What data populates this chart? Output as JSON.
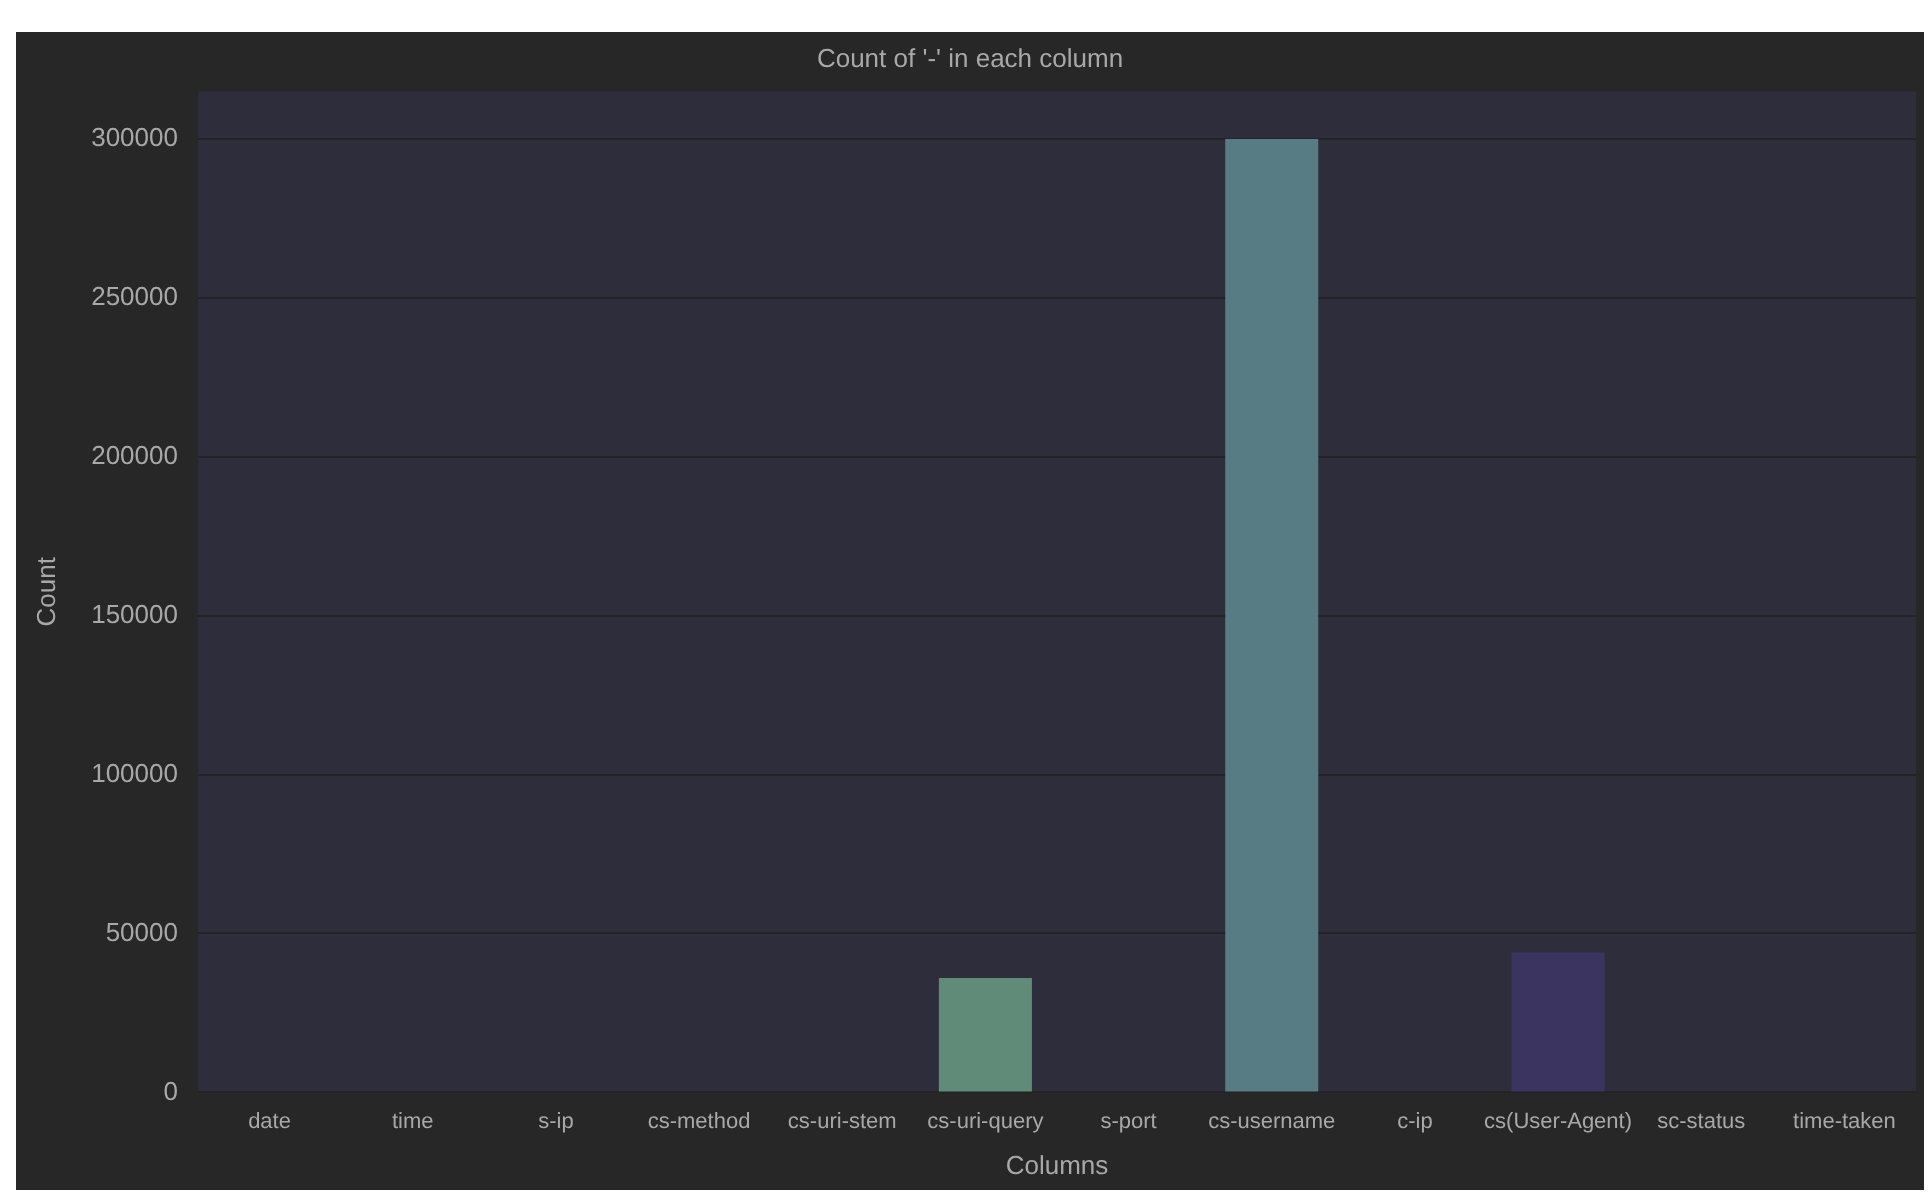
{
  "chart_data": {
    "type": "bar",
    "title": "Count of '-' in each column",
    "xlabel": "Columns",
    "ylabel": "Count",
    "categories": [
      "date",
      "time",
      "s-ip",
      "cs-method",
      "cs-uri-stem",
      "cs-uri-query",
      "s-port",
      "cs-username",
      "c-ip",
      "cs(User-Agent)",
      "sc-status",
      "time-taken"
    ],
    "values": [
      0,
      0,
      0,
      0,
      0,
      36000,
      0,
      300000,
      0,
      44000,
      0,
      0
    ],
    "colors": [
      "#a3c9a8",
      "#8fbc9a",
      "#7fae8e",
      "#6f9f84",
      "#65957e",
      "#5f8b78",
      "#5a8380",
      "#577c84",
      "#4f6c86",
      "#3b3460",
      "#3a2f52",
      "#2e2540"
    ],
    "ylim": [
      0,
      315000
    ],
    "yticks": [
      0,
      50000,
      100000,
      150000,
      200000,
      250000,
      300000
    ],
    "grid": "y",
    "legend": false
  }
}
